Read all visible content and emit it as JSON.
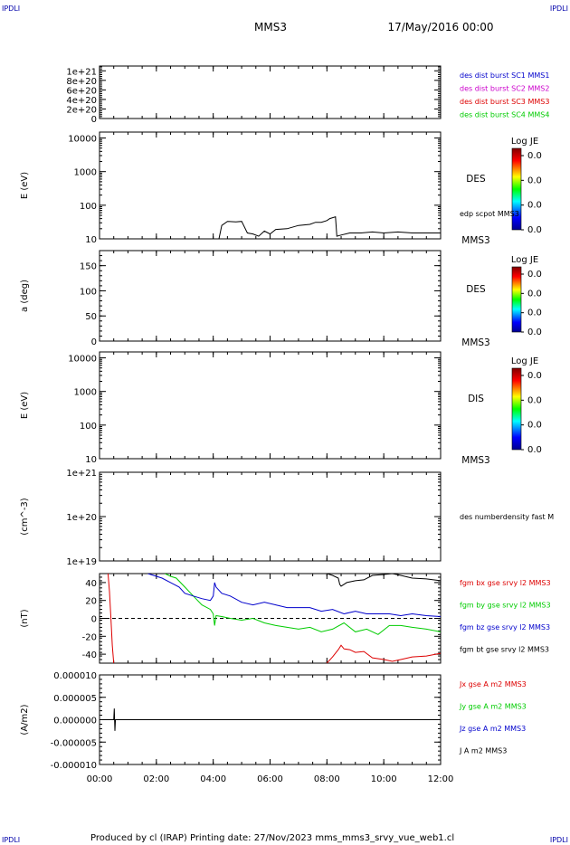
{
  "header": {
    "corner_tl": "IPDLI",
    "corner_tr": "IPDLI",
    "corner_bl": "IPDLI",
    "corner_br": "IPDLI",
    "spacecraft": "MMS3",
    "date": "17/May/2016 00:00",
    "footer": "Produced by cl (IRAP)   Printing date: 27/Nov/2023   mms_mms3_srvy_vue_web1.cl"
  },
  "colors": {
    "black": "#000000",
    "red": "#dd0000",
    "green": "#00cc00",
    "blue": "#0000cc",
    "magenta": "#cc00cc"
  },
  "chart_data": [
    {
      "type": "line",
      "panel": 1,
      "ylabel": "",
      "ylim": [
        0,
        1.1e+21
      ],
      "yticks": [
        {
          "v": 0,
          "label": "0"
        },
        {
          "v": 2e+20,
          "label": "2e+20"
        },
        {
          "v": 4e+20,
          "label": "4e+20"
        },
        {
          "v": 6e+20,
          "label": "6e+20"
        },
        {
          "v": 8e+20,
          "label": "8e+20"
        },
        {
          "v": 1e+21,
          "label": "1e+21"
        }
      ],
      "zero_line": true,
      "right_labels": [
        {
          "text": "des dist burst SC1 MMS1",
          "color": "#0000cc"
        },
        {
          "text": "des dist burst SC2 MMS2",
          "color": "#cc00cc"
        },
        {
          "text": "des dist burst SC3 MMS3",
          "color": "#dd0000"
        },
        {
          "text": "des dist burst SC4 MMS4",
          "color": "#00cc00"
        }
      ],
      "series": []
    },
    {
      "type": "spectrogram",
      "panel": 2,
      "ylabel": "E (eV)",
      "scale": "log",
      "ylim": [
        10,
        15000
      ],
      "yticks": [
        {
          "v": 10,
          "label": "10"
        },
        {
          "v": 100,
          "label": "100"
        },
        {
          "v": 1000,
          "label": "1000"
        },
        {
          "v": 10000,
          "label": "10000"
        }
      ],
      "instrument": "DES",
      "spacecraft_label": "MMS3",
      "colorbar": {
        "title": "Log JE",
        "ticks": [
          "0.0",
          "0.0",
          "0.0",
          "0.0"
        ]
      },
      "overlay_label": "edp scpot MMS3",
      "series": [
        {
          "color": "#000000",
          "x": [
            4.2,
            4.3,
            4.5,
            4.8,
            5.0,
            5.2,
            5.4,
            5.6,
            5.8,
            6.0,
            6.2,
            6.6,
            7.0,
            7.4,
            7.6,
            7.8,
            8.0,
            8.1,
            8.3,
            8.35,
            8.5,
            8.8,
            9.2,
            9.6,
            10.0,
            10.5,
            11.0,
            11.5,
            12.0
          ],
          "y": [
            10,
            25,
            33,
            32,
            33,
            15,
            14,
            12,
            17,
            14,
            19,
            20,
            25,
            27,
            31,
            31,
            35,
            40,
            45,
            12,
            13,
            15,
            15,
            16,
            15,
            16,
            15,
            15,
            15
          ]
        }
      ]
    },
    {
      "type": "spectrogram",
      "panel": 3,
      "ylabel": "a (deg)",
      "scale": "linear",
      "ylim": [
        0,
        180
      ],
      "yticks": [
        {
          "v": 0,
          "label": "0"
        },
        {
          "v": 50,
          "label": "50"
        },
        {
          "v": 100,
          "label": "100"
        },
        {
          "v": 150,
          "label": "150"
        }
      ],
      "instrument": "DES",
      "spacecraft_label": "MMS3",
      "colorbar": {
        "title": "Log JE",
        "ticks": [
          "0.0",
          "0.0",
          "0.0",
          "0.0"
        ]
      },
      "series": []
    },
    {
      "type": "spectrogram",
      "panel": 4,
      "ylabel": "E (eV)",
      "scale": "log",
      "ylim": [
        10,
        15000
      ],
      "yticks": [
        {
          "v": 10,
          "label": "10"
        },
        {
          "v": 100,
          "label": "100"
        },
        {
          "v": 1000,
          "label": "1000"
        },
        {
          "v": 10000,
          "label": "10000"
        }
      ],
      "instrument": "DIS",
      "spacecraft_label": "MMS3",
      "colorbar": {
        "title": "Log JE",
        "ticks": [
          "0.0",
          "0.0",
          "0.0",
          "0.0"
        ]
      },
      "series": []
    },
    {
      "type": "line",
      "panel": 5,
      "ylabel": "(cm^-3)",
      "scale": "log",
      "ylim": [
        1e+19,
        1e+21
      ],
      "yticks": [
        {
          "v": 1e+19,
          "label": "1e+19"
        },
        {
          "v": 1e+20,
          "label": "1e+20"
        },
        {
          "v": 1e+21,
          "label": "1e+21"
        }
      ],
      "right_labels": [
        {
          "text": "des numberdensity fast M",
          "color": "#000000"
        }
      ],
      "series": []
    },
    {
      "type": "line",
      "panel": 6,
      "ylabel": "(nT)",
      "scale": "linear",
      "ylim": [
        -50,
        50
      ],
      "yticks": [
        {
          "v": -40,
          "label": "-40"
        },
        {
          "v": -20,
          "label": "-20"
        },
        {
          "v": 0,
          "label": "0"
        },
        {
          "v": 20,
          "label": "20"
        },
        {
          "v": 40,
          "label": "40"
        }
      ],
      "zero_line": true,
      "right_labels": [
        {
          "text": "fgm bx gse srvy l2 MMS3",
          "color": "#dd0000"
        },
        {
          "text": "fgm by gse srvy l2 MMS3",
          "color": "#00cc00"
        },
        {
          "text": "fgm bz gse srvy l2 MMS3",
          "color": "#0000cc"
        },
        {
          "text": "fgm bt gse srvy l2 MMS3",
          "color": "#000000"
        }
      ],
      "series": [
        {
          "name": "fgm bx gse srvy l2 MMS3",
          "color": "#dd0000",
          "x": [
            0.3,
            0.35,
            0.4,
            0.45,
            0.5
          ],
          "y": [
            50,
            30,
            0,
            -30,
            -50
          ]
        },
        {
          "name": "fgm bx gse srvy l2 MMS3",
          "color": "#dd0000",
          "x": [
            8.0,
            8.2,
            8.4,
            8.5,
            8.6,
            8.8,
            9.0,
            9.3,
            9.6,
            10.0,
            10.3,
            10.6,
            11.0,
            11.5,
            12.0
          ],
          "y": [
            -50,
            -43,
            -35,
            -30,
            -34,
            -35,
            -38,
            -37,
            -44,
            -46,
            -48,
            -46,
            -43,
            -42,
            -39
          ]
        },
        {
          "name": "fgm by gse srvy l2 MMS3",
          "color": "#00cc00",
          "x": [
            2.3,
            2.5,
            2.7,
            3.0,
            3.3,
            3.6,
            3.9,
            4.0,
            4.05,
            4.1,
            4.3,
            4.6,
            5.0,
            5.4,
            5.8,
            6.2,
            6.6,
            7.0,
            7.4,
            7.8,
            8.2,
            8.6,
            9.0,
            9.4,
            9.8,
            10.2,
            10.6,
            11.0,
            11.5,
            12.0
          ],
          "y": [
            50,
            47,
            45,
            35,
            25,
            15,
            10,
            5,
            -8,
            3,
            2,
            0,
            -2,
            0,
            -5,
            -8,
            -10,
            -12,
            -10,
            -15,
            -12,
            -5,
            -15,
            -12,
            -18,
            -8,
            -8,
            -10,
            -12,
            -15
          ]
        },
        {
          "name": "fgm bz gse srvy l2 MMS3",
          "color": "#0000cc",
          "x": [
            1.7,
            1.9,
            2.2,
            2.5,
            2.8,
            3.0,
            3.3,
            3.6,
            3.9,
            4.0,
            4.05,
            4.1,
            4.3,
            4.6,
            5.0,
            5.4,
            5.8,
            6.2,
            6.6,
            7.0,
            7.4,
            7.8,
            8.2,
            8.6,
            9.0,
            9.4,
            9.8,
            10.2,
            10.6,
            11.0,
            11.5,
            12.0
          ],
          "y": [
            50,
            48,
            45,
            40,
            35,
            28,
            25,
            22,
            20,
            25,
            40,
            35,
            28,
            25,
            18,
            15,
            18,
            15,
            12,
            12,
            12,
            8,
            10,
            5,
            8,
            5,
            5,
            5,
            3,
            5,
            3,
            2
          ]
        },
        {
          "name": "fgm bt gse srvy l2 MMS3",
          "color": "#000000",
          "x": [
            8.0,
            8.2,
            8.4,
            8.45,
            8.5,
            8.7,
            9.0,
            9.3,
            9.6,
            10.0,
            10.3,
            10.6,
            11.0,
            11.5,
            12.0
          ],
          "y": [
            50,
            48,
            45,
            38,
            36,
            40,
            42,
            43,
            48,
            49,
            50,
            48,
            45,
            44,
            42
          ]
        }
      ]
    },
    {
      "type": "line",
      "panel": 7,
      "ylabel": "(A/m2)",
      "scale": "linear",
      "ylim": [
        -1e-05,
        1e-05
      ],
      "yticks": [
        {
          "v": -1e-05,
          "label": "-0.000010"
        },
        {
          "v": -5e-06,
          "label": "-0.000005"
        },
        {
          "v": 0,
          "label": "0.000000"
        },
        {
          "v": 5e-06,
          "label": "0.000005"
        },
        {
          "v": 1e-05,
          "label": "0.000010"
        }
      ],
      "right_labels": [
        {
          "text": "Jx gse A m2 MMS3",
          "color": "#dd0000"
        },
        {
          "text": "Jy gse A m2 MMS3",
          "color": "#00cc00"
        },
        {
          "text": "Jz gse A m2 MMS3",
          "color": "#0000cc"
        },
        {
          "text": "J A m2 MMS3",
          "color": "#000000"
        }
      ],
      "series": [
        {
          "name": "J A m2 MMS3",
          "color": "#000000",
          "x": [
            0,
            0.5,
            0.52,
            0.54,
            0.56,
            0.6,
            2,
            4,
            6,
            8,
            10,
            12
          ],
          "y": [
            0,
            0,
            2.5e-06,
            -2.5e-06,
            0,
            0,
            0,
            0,
            0,
            0,
            0,
            0
          ]
        }
      ]
    }
  ],
  "xaxis": {
    "xlim": [
      0,
      12
    ],
    "ticks": [
      {
        "v": 0,
        "label": "00:00"
      },
      {
        "v": 2,
        "label": "02:00"
      },
      {
        "v": 4,
        "label": "04:00"
      },
      {
        "v": 6,
        "label": "06:00"
      },
      {
        "v": 8,
        "label": "08:00"
      },
      {
        "v": 10,
        "label": "10:00"
      },
      {
        "v": 12,
        "label": "12:00"
      }
    ]
  }
}
